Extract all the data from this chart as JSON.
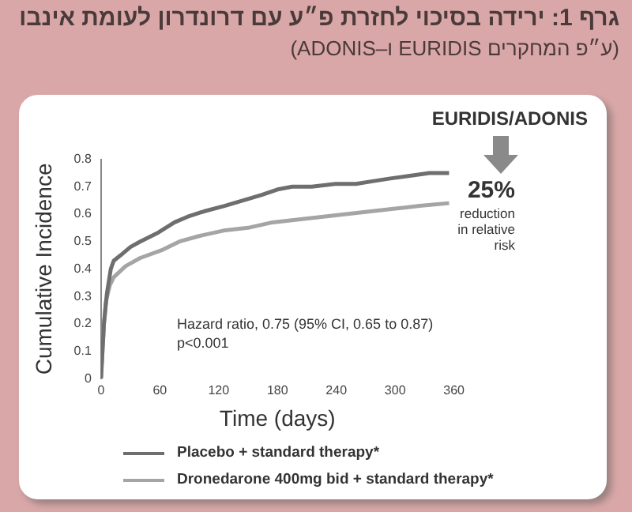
{
  "chart_data": {
    "type": "line",
    "title": "גרף 1: ירידה בסיכוי לחזרת פ״ע עם דרונדרון לעומת אינבו",
    "subtitle": "(ע״פ המחקרים EURIDIS ו–ADONIS)",
    "xlabel": "Time (days)",
    "ylabel": "Cumulative Incidence",
    "annotations": [
      "EURIDIS/ADONIS",
      "25%",
      "reduction in relative risk",
      "Hazard ratio, 0.75 (95% CI, 0.65 to 0.87)",
      "p<0.001"
    ],
    "xlim": [
      0,
      360
    ],
    "xticks": [
      0,
      60,
      120,
      180,
      240,
      300,
      360
    ],
    "ylim": [
      0,
      0.8
    ],
    "yticks": [
      0,
      0.1,
      0.2,
      0.3,
      0.4,
      0.5,
      0.6,
      0.7,
      0.8
    ],
    "grid": false,
    "legend": "bottom",
    "marker": "none",
    "line_style": "solid",
    "series": [
      {
        "name": "Placebo + standard therapy*",
        "color": "#6e6e6e",
        "x": [
          0,
          3,
          6,
          10,
          13,
          20,
          30,
          40,
          57,
          75,
          88,
          105,
          126,
          145,
          164,
          180,
          195,
          215,
          239,
          260,
          277,
          295,
          315,
          335,
          355
        ],
        "values": [
          0,
          0.2,
          0.31,
          0.4,
          0.43,
          0.45,
          0.48,
          0.5,
          0.53,
          0.57,
          0.59,
          0.61,
          0.63,
          0.65,
          0.67,
          0.69,
          0.7,
          0.7,
          0.71,
          0.71,
          0.72,
          0.73,
          0.74,
          0.75,
          0.75
        ]
      },
      {
        "name": "Dronedarone 400mg bid + standard therapy*",
        "color": "#a5a5a5",
        "x": [
          0,
          3,
          5,
          9,
          13,
          25,
          40,
          63,
          80,
          100,
          125,
          150,
          175,
          200,
          225,
          250,
          275,
          300,
          325,
          355
        ],
        "values": [
          0,
          0.2,
          0.28,
          0.34,
          0.37,
          0.41,
          0.44,
          0.47,
          0.5,
          0.52,
          0.54,
          0.55,
          0.57,
          0.58,
          0.59,
          0.6,
          0.61,
          0.62,
          0.63,
          0.64
        ]
      }
    ]
  }
}
